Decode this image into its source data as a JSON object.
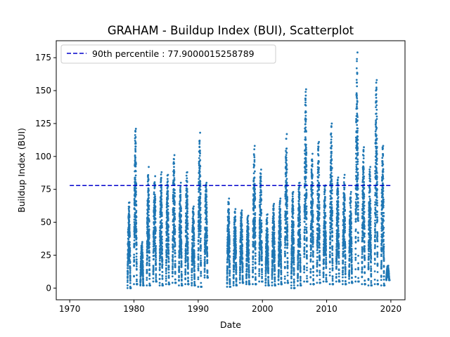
{
  "chart_data": {
    "type": "scatter",
    "title": "GRAHAM - Buildup Index (BUI), Scatterplot",
    "xlabel": "Date",
    "ylabel": "Buildup Index (BUI)",
    "xlim": [
      1967.9,
      2022.2
    ],
    "ylim": [
      -8.9,
      187.9
    ],
    "x_ticks": [
      1970,
      1980,
      1990,
      2000,
      2010,
      2020
    ],
    "y_ticks": [
      0,
      25,
      50,
      75,
      100,
      125,
      150,
      175
    ],
    "reference_line": {
      "label": "90th percentile : 77.9000015258789",
      "value": 77.9000015258789,
      "x_range": [
        1970,
        2020
      ],
      "color": "#0000cc",
      "style": "dashed"
    },
    "legend_position": "upper left",
    "point_color": "#1f77b4",
    "series": [
      {
        "seasons": [
          {
            "year": 1979,
            "peak": 65,
            "min": 0
          },
          {
            "year": 1980,
            "peak": 121,
            "min": 3
          },
          {
            "year": 1981,
            "peak": 35,
            "min": 2
          },
          {
            "year": 1982,
            "peak": 92,
            "min": 2
          },
          {
            "year": 1983,
            "peak": 85,
            "min": 5
          },
          {
            "year": 1984,
            "peak": 88,
            "min": 2
          },
          {
            "year": 1985,
            "peak": 86,
            "min": 3
          },
          {
            "year": 1986,
            "peak": 101,
            "min": 4
          },
          {
            "year": 1987,
            "peak": 80,
            "min": 2
          },
          {
            "year": 1988,
            "peak": 88,
            "min": 3
          },
          {
            "year": 1989,
            "peak": 62,
            "min": 2
          },
          {
            "year": 1990,
            "peak": 118,
            "min": 1
          },
          {
            "year": 1991,
            "peak": 80,
            "min": 8
          },
          {
            "year": 1994.5,
            "peak": 68,
            "min": 1
          },
          {
            "year": 1995.5,
            "peak": 60,
            "min": 2
          },
          {
            "year": 1996.5,
            "peak": 59,
            "min": 4
          },
          {
            "year": 1997.5,
            "peak": 55,
            "min": 3
          },
          {
            "year": 1998.5,
            "peak": 108,
            "min": 3
          },
          {
            "year": 1999.5,
            "peak": 90,
            "min": 5
          },
          {
            "year": 2000.5,
            "peak": 56,
            "min": 2
          },
          {
            "year": 2001.5,
            "peak": 64,
            "min": 2
          },
          {
            "year": 2002.5,
            "peak": 68,
            "min": 3
          },
          {
            "year": 2003.5,
            "peak": 117,
            "min": 4
          },
          {
            "year": 2004.5,
            "peak": 73,
            "min": 0
          },
          {
            "year": 2005.5,
            "peak": 80,
            "min": 2
          },
          {
            "year": 2006.5,
            "peak": 151,
            "min": 5
          },
          {
            "year": 2007.5,
            "peak": 102,
            "min": 3
          },
          {
            "year": 2008.5,
            "peak": 111,
            "min": 4
          },
          {
            "year": 2009.5,
            "peak": 78,
            "min": 5
          },
          {
            "year": 2010.5,
            "peak": 125,
            "min": 3
          },
          {
            "year": 2011.5,
            "peak": 84,
            "min": 5
          },
          {
            "year": 2012.5,
            "peak": 86,
            "min": 3
          },
          {
            "year": 2013.5,
            "peak": 73,
            "min": 4
          },
          {
            "year": 2014.5,
            "peak": 179,
            "min": 5
          },
          {
            "year": 2015.5,
            "peak": 107,
            "min": 3
          },
          {
            "year": 2016.5,
            "peak": 92,
            "min": 2
          },
          {
            "year": 2017.5,
            "peak": 158,
            "min": 3
          },
          {
            "year": 2018.5,
            "peak": 108,
            "min": 2
          },
          {
            "year": 2019.3,
            "peak": 17,
            "min": 6
          }
        ]
      }
    ]
  }
}
